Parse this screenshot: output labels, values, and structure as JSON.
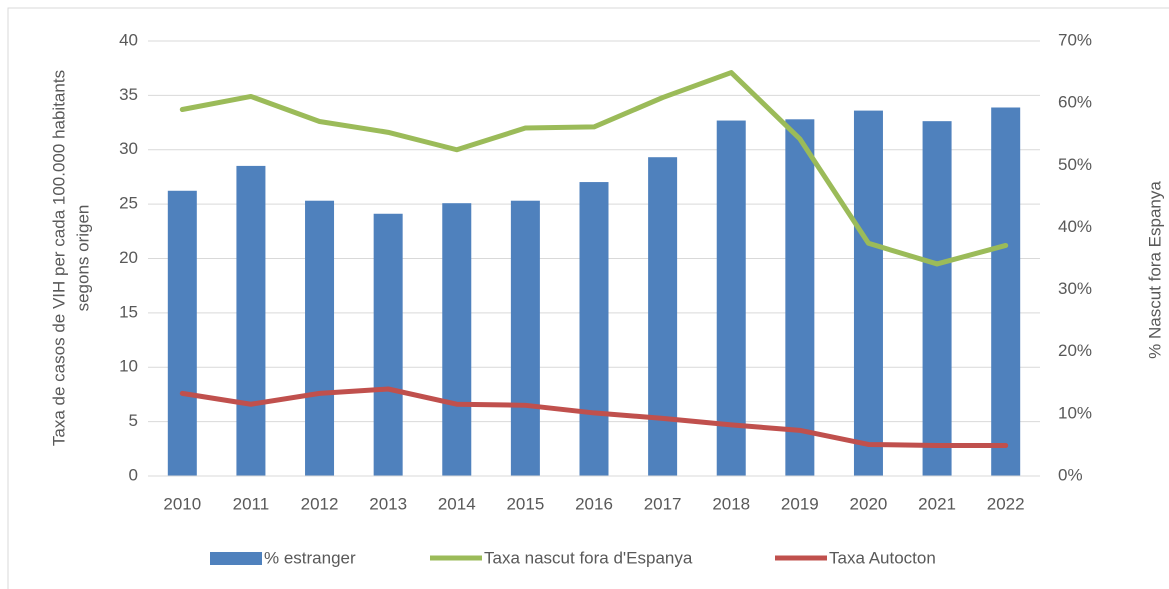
{
  "chart_data": {
    "type": "bar_line",
    "ylabel": [
      "Taxa de casos de VIH per cada 100.000 habitants",
      "segons origen"
    ],
    "y2label": "% Nascut fora Espanya",
    "categories": [
      "2010",
      "2011",
      "2012",
      "2013",
      "2014",
      "2015",
      "2016",
      "2017",
      "2018",
      "2019",
      "2020",
      "2021",
      "2022"
    ],
    "ylim": [
      0,
      40
    ],
    "yticks": [
      0,
      5,
      10,
      15,
      20,
      25,
      30,
      35,
      40
    ],
    "y2lim": [
      0,
      70
    ],
    "y2ticks": [
      {
        "value": 0,
        "label": "0%"
      },
      {
        "value": 10,
        "label": "10%"
      },
      {
        "value": 20,
        "label": "20%"
      },
      {
        "value": 30,
        "label": "30%"
      },
      {
        "value": 40,
        "label": "40%"
      },
      {
        "value": 50,
        "label": "50%"
      },
      {
        "value": 60,
        "label": "60%"
      },
      {
        "value": 70,
        "label": "70%"
      }
    ],
    "grid": true,
    "legend": "bottom",
    "series": [
      {
        "name": "% estranger",
        "kind": "bar",
        "axis": "y2",
        "color": "#4f81bd",
        "values": [
          45.9,
          49.9,
          44.3,
          42.2,
          43.9,
          44.3,
          47.3,
          51.3,
          57.2,
          57.4,
          58.8,
          57.1,
          59.3
        ]
      },
      {
        "name": "Taxa nascut fora d'Espanya",
        "kind": "line",
        "color": "#9bbb59",
        "values": [
          33.7,
          34.9,
          32.6,
          31.6,
          30.0,
          32.0,
          32.1,
          34.8,
          37.1,
          31.0,
          21.4,
          19.5,
          21.2
        ]
      },
      {
        "name": "Taxa Autocton",
        "kind": "line",
        "color": "#c0504d",
        "values": [
          7.6,
          6.6,
          7.6,
          8.0,
          6.6,
          6.5,
          5.8,
          5.3,
          4.7,
          4.2,
          2.9,
          2.8,
          2.8
        ]
      }
    ]
  }
}
